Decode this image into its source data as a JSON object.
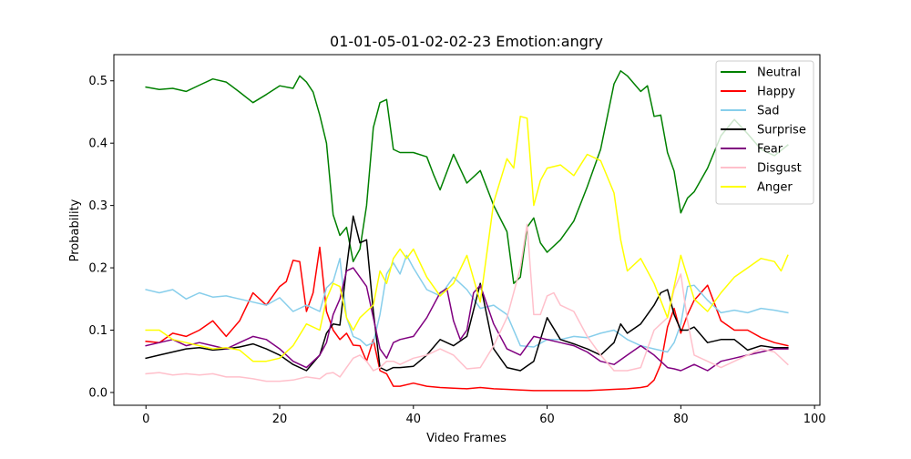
{
  "chart_data": {
    "type": "line",
    "title": "01-01-05-01-02-02-23 Emotion:angry",
    "xlabel": "Video Frames",
    "ylabel": "Probability",
    "xlim": [
      -4.8,
      100.8
    ],
    "ylim": [
      -0.0205,
      0.542
    ],
    "xticks": [
      0,
      20,
      40,
      60,
      80,
      100
    ],
    "yticks": [
      0.0,
      0.1,
      0.2,
      0.3,
      0.4,
      0.5
    ],
    "xtick_labels": [
      "0",
      "20",
      "40",
      "60",
      "80",
      "100"
    ],
    "ytick_labels": [
      "0.0",
      "0.1",
      "0.2",
      "0.3",
      "0.4",
      "0.5"
    ],
    "grid": false,
    "legend_position": "top-right",
    "series": [
      {
        "name": "Neutral",
        "color": "#008000",
        "x": [
          0,
          2,
          4,
          6,
          8,
          10,
          12,
          14,
          16,
          18,
          20,
          22,
          23,
          24,
          25,
          26,
          27,
          28,
          29,
          30,
          31,
          32,
          33,
          34,
          35,
          36,
          37,
          38,
          40,
          42,
          43,
          44,
          46,
          48,
          50,
          52,
          54,
          55,
          56,
          57,
          58,
          59,
          60,
          62,
          64,
          66,
          67,
          68,
          70,
          71,
          72,
          74,
          75,
          76,
          77,
          78,
          79,
          80,
          81,
          82,
          84,
          86,
          88,
          90,
          92,
          94,
          96
        ],
        "values": [
          0.49,
          0.486,
          0.488,
          0.483,
          0.493,
          0.503,
          0.498,
          0.482,
          0.465,
          0.478,
          0.492,
          0.488,
          0.508,
          0.498,
          0.482,
          0.445,
          0.4,
          0.285,
          0.252,
          0.265,
          0.21,
          0.23,
          0.3,
          0.425,
          0.465,
          0.47,
          0.39,
          0.385,
          0.385,
          0.378,
          0.35,
          0.325,
          0.382,
          0.336,
          0.356,
          0.3,
          0.258,
          0.175,
          0.185,
          0.265,
          0.28,
          0.24,
          0.225,
          0.245,
          0.275,
          0.33,
          0.36,
          0.39,
          0.495,
          0.516,
          0.508,
          0.483,
          0.492,
          0.443,
          0.445,
          0.385,
          0.355,
          0.288,
          0.312,
          0.322,
          0.36,
          0.412,
          0.438,
          0.415,
          0.39,
          0.38,
          0.397
        ]
      },
      {
        "name": "Happy",
        "color": "#ff0000",
        "x": [
          0,
          2,
          4,
          6,
          8,
          10,
          12,
          14,
          16,
          18,
          20,
          21,
          22,
          23,
          24,
          25,
          26,
          27,
          28,
          29,
          30,
          31,
          32,
          33,
          34,
          35,
          36,
          37,
          38,
          40,
          42,
          44,
          46,
          48,
          50,
          52,
          54,
          56,
          58,
          60,
          62,
          64,
          66,
          68,
          70,
          72,
          74,
          75,
          76,
          77,
          78,
          79,
          80,
          81,
          82,
          84,
          86,
          88,
          90,
          92,
          94,
          96
        ],
        "values": [
          0.082,
          0.08,
          0.095,
          0.09,
          0.1,
          0.115,
          0.09,
          0.115,
          0.16,
          0.14,
          0.17,
          0.178,
          0.212,
          0.21,
          0.13,
          0.16,
          0.233,
          0.13,
          0.1,
          0.085,
          0.095,
          0.076,
          0.075,
          0.05,
          0.085,
          0.035,
          0.03,
          0.01,
          0.01,
          0.015,
          0.01,
          0.008,
          0.007,
          0.006,
          0.008,
          0.006,
          0.005,
          0.004,
          0.003,
          0.003,
          0.003,
          0.003,
          0.003,
          0.004,
          0.005,
          0.006,
          0.008,
          0.01,
          0.02,
          0.045,
          0.105,
          0.135,
          0.095,
          0.125,
          0.148,
          0.172,
          0.115,
          0.1,
          0.1,
          0.088,
          0.08,
          0.075
        ]
      },
      {
        "name": "Sad",
        "color": "#87ceeb",
        "x": [
          0,
          2,
          4,
          6,
          8,
          10,
          12,
          14,
          16,
          18,
          20,
          22,
          24,
          26,
          27,
          28,
          29,
          30,
          31,
          32,
          33,
          34,
          35,
          36,
          37,
          38,
          39,
          40,
          42,
          44,
          46,
          48,
          50,
          52,
          54,
          56,
          58,
          60,
          62,
          64,
          66,
          68,
          70,
          72,
          74,
          76,
          78,
          79,
          80,
          81,
          82,
          84,
          86,
          88,
          90,
          92,
          94,
          96
        ],
        "values": [
          0.165,
          0.16,
          0.165,
          0.15,
          0.16,
          0.153,
          0.155,
          0.15,
          0.145,
          0.14,
          0.152,
          0.13,
          0.14,
          0.13,
          0.168,
          0.178,
          0.215,
          0.12,
          0.09,
          0.085,
          0.075,
          0.08,
          0.125,
          0.19,
          0.208,
          0.19,
          0.22,
          0.2,
          0.165,
          0.155,
          0.185,
          0.165,
          0.135,
          0.14,
          0.125,
          0.075,
          0.073,
          0.085,
          0.085,
          0.09,
          0.088,
          0.095,
          0.1,
          0.085,
          0.075,
          0.07,
          0.065,
          0.08,
          0.11,
          0.17,
          0.172,
          0.148,
          0.128,
          0.132,
          0.128,
          0.135,
          0.132,
          0.128
        ]
      },
      {
        "name": "Surprise",
        "color": "#000000",
        "x": [
          0,
          2,
          4,
          6,
          8,
          10,
          12,
          14,
          16,
          18,
          20,
          22,
          24,
          26,
          27,
          28,
          29,
          30,
          31,
          32,
          33,
          34,
          35,
          36,
          37,
          38,
          40,
          42,
          44,
          46,
          48,
          50,
          52,
          54,
          56,
          58,
          60,
          62,
          64,
          66,
          68,
          70,
          71,
          72,
          74,
          76,
          77,
          78,
          79,
          80,
          81,
          82,
          84,
          86,
          88,
          90,
          92,
          94,
          96
        ],
        "values": [
          0.055,
          0.06,
          0.065,
          0.07,
          0.072,
          0.068,
          0.07,
          0.073,
          0.078,
          0.07,
          0.06,
          0.045,
          0.035,
          0.06,
          0.095,
          0.11,
          0.108,
          0.2,
          0.283,
          0.24,
          0.245,
          0.13,
          0.04,
          0.035,
          0.04,
          0.04,
          0.042,
          0.06,
          0.085,
          0.075,
          0.09,
          0.175,
          0.07,
          0.04,
          0.035,
          0.05,
          0.12,
          0.085,
          0.078,
          0.07,
          0.06,
          0.08,
          0.11,
          0.095,
          0.11,
          0.14,
          0.16,
          0.165,
          0.125,
          0.1,
          0.1,
          0.105,
          0.08,
          0.085,
          0.085,
          0.068,
          0.075,
          0.072,
          0.072
        ]
      },
      {
        "name": "Fear",
        "color": "#800080",
        "x": [
          0,
          2,
          4,
          6,
          8,
          10,
          12,
          14,
          16,
          18,
          20,
          22,
          24,
          26,
          27,
          28,
          29,
          30,
          31,
          32,
          33,
          34,
          35,
          36,
          37,
          38,
          40,
          42,
          44,
          45,
          46,
          47,
          48,
          49,
          50,
          52,
          54,
          56,
          58,
          60,
          62,
          64,
          66,
          68,
          70,
          72,
          74,
          76,
          78,
          79,
          80,
          81,
          82,
          84,
          86,
          88,
          90,
          92,
          94,
          96
        ],
        "values": [
          0.075,
          0.08,
          0.085,
          0.075,
          0.08,
          0.075,
          0.07,
          0.08,
          0.09,
          0.085,
          0.07,
          0.05,
          0.04,
          0.06,
          0.08,
          0.125,
          0.15,
          0.195,
          0.2,
          0.185,
          0.17,
          0.12,
          0.07,
          0.055,
          0.08,
          0.085,
          0.09,
          0.12,
          0.16,
          0.167,
          0.115,
          0.085,
          0.1,
          0.16,
          0.172,
          0.11,
          0.07,
          0.06,
          0.09,
          0.085,
          0.08,
          0.075,
          0.065,
          0.05,
          0.045,
          0.06,
          0.075,
          0.06,
          0.04,
          0.038,
          0.035,
          0.04,
          0.045,
          0.035,
          0.05,
          0.055,
          0.06,
          0.065,
          0.07,
          0.07
        ]
      },
      {
        "name": "Disgust",
        "color": "#ffc0cb",
        "x": [
          0,
          2,
          4,
          6,
          8,
          10,
          12,
          14,
          16,
          18,
          20,
          22,
          24,
          26,
          27,
          28,
          29,
          30,
          31,
          32,
          33,
          34,
          35,
          36,
          37,
          38,
          40,
          42,
          44,
          46,
          48,
          50,
          52,
          54,
          56,
          57,
          58,
          59,
          60,
          61,
          62,
          64,
          66,
          68,
          70,
          72,
          74,
          76,
          78,
          79,
          80,
          81,
          82,
          84,
          86,
          88,
          90,
          92,
          94,
          96
        ],
        "values": [
          0.03,
          0.032,
          0.028,
          0.03,
          0.028,
          0.03,
          0.025,
          0.025,
          0.022,
          0.018,
          0.018,
          0.02,
          0.025,
          0.022,
          0.03,
          0.032,
          0.025,
          0.04,
          0.055,
          0.06,
          0.05,
          0.035,
          0.04,
          0.05,
          0.05,
          0.045,
          0.055,
          0.06,
          0.07,
          0.06,
          0.038,
          0.04,
          0.075,
          0.12,
          0.2,
          0.27,
          0.125,
          0.125,
          0.155,
          0.16,
          0.14,
          0.13,
          0.09,
          0.06,
          0.035,
          0.035,
          0.04,
          0.1,
          0.12,
          0.165,
          0.19,
          0.115,
          0.06,
          0.05,
          0.04,
          0.05,
          0.06,
          0.07,
          0.065,
          0.045
        ]
      },
      {
        "name": "Anger",
        "color": "#ffff00",
        "x": [
          0,
          2,
          4,
          6,
          8,
          10,
          12,
          14,
          16,
          18,
          20,
          22,
          24,
          26,
          27,
          28,
          29,
          30,
          31,
          32,
          33,
          34,
          35,
          36,
          37,
          38,
          39,
          40,
          42,
          44,
          46,
          48,
          50,
          52,
          54,
          55,
          56,
          57,
          58,
          59,
          60,
          62,
          64,
          66,
          68,
          70,
          71,
          72,
          74,
          76,
          78,
          80,
          82,
          84,
          86,
          88,
          90,
          92,
          94,
          95,
          96
        ],
        "values": [
          0.1,
          0.1,
          0.085,
          0.08,
          0.075,
          0.07,
          0.072,
          0.068,
          0.05,
          0.05,
          0.055,
          0.075,
          0.11,
          0.1,
          0.15,
          0.175,
          0.17,
          0.12,
          0.1,
          0.12,
          0.13,
          0.14,
          0.195,
          0.175,
          0.215,
          0.23,
          0.215,
          0.23,
          0.185,
          0.155,
          0.175,
          0.22,
          0.145,
          0.305,
          0.375,
          0.36,
          0.443,
          0.44,
          0.3,
          0.34,
          0.36,
          0.365,
          0.348,
          0.382,
          0.372,
          0.32,
          0.245,
          0.195,
          0.215,
          0.175,
          0.12,
          0.22,
          0.15,
          0.13,
          0.16,
          0.185,
          0.2,
          0.215,
          0.21,
          0.195,
          0.22
        ]
      }
    ]
  }
}
